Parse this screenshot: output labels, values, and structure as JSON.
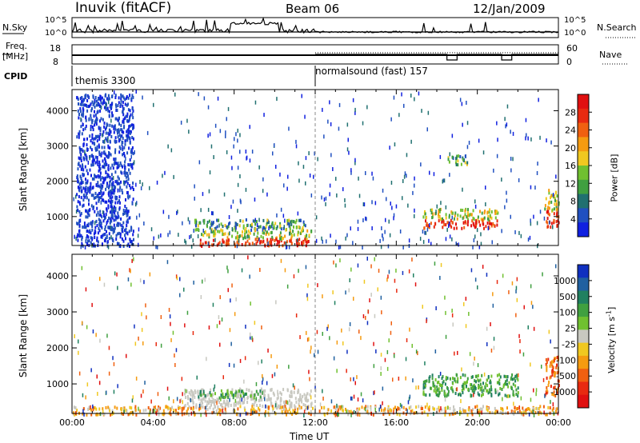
{
  "header": {
    "station": "Inuvik (fitACF)",
    "beam": "Beam 06",
    "date": "12/Jan/2009"
  },
  "nsky": {
    "label": "N.Sky",
    "tick_top": "10^5",
    "tick_bottom": "10^0",
    "right_label": "N.Search",
    "right_tick_top": "10^5",
    "right_tick_bottom": "10^0"
  },
  "freq": {
    "label_line1": "Freq.",
    "label_line2": "[MHz]",
    "tick_top": "18",
    "tick_bottom": "8",
    "right_label": "Nave",
    "right_tick_top": "60",
    "right_tick_bottom": "0"
  },
  "cpid": {
    "label": "CPID",
    "segments": [
      {
        "name": "themis 3300",
        "start_hour": 0
      },
      {
        "name": "normalsound (fast) 157",
        "start_hour": 12
      }
    ]
  },
  "chart_data": [
    {
      "type": "heatmap",
      "panel": "power",
      "ylabel": "Slant Range [km]",
      "yticks": [
        "1000",
        "2000",
        "3000",
        "4000"
      ],
      "ylim_km": [
        180,
        4600
      ],
      "xlim_hours": [
        0,
        24
      ],
      "colorbar": {
        "label": "Power [dB]",
        "ticks": [
          "4",
          "8",
          "12",
          "16",
          "20",
          "24",
          "28"
        ],
        "colors": [
          "#1020e0",
          "#2050c0",
          "#207070",
          "#40a040",
          "#70c030",
          "#f0c820",
          "#f59b10",
          "#f06010",
          "#e82a10",
          "#e01010"
        ]
      },
      "regions": [
        {
          "t0": 6.3,
          "t1": 11.8,
          "r0": 200,
          "r1": 650,
          "level": "high"
        },
        {
          "t0": 6.0,
          "t1": 11.5,
          "r0": 650,
          "r1": 950,
          "level": "medium"
        },
        {
          "t0": 17.3,
          "t1": 21.0,
          "r0": 700,
          "r1": 1250,
          "level": "high"
        },
        {
          "t0": 23.3,
          "t1": 24.0,
          "r0": 700,
          "r1": 1800,
          "level": "high"
        },
        {
          "t0": 0.2,
          "t1": 3.0,
          "r0": 200,
          "r1": 4500,
          "level": "low"
        },
        {
          "t0": 18.5,
          "t1": 19.5,
          "r0": 2500,
          "r1": 2800,
          "level": "medium"
        }
      ]
    },
    {
      "type": "heatmap",
      "panel": "velocity",
      "ylabel": "Slant Range [km]",
      "yticks": [
        "1000",
        "2000",
        "3000",
        "4000"
      ],
      "ylim_km": [
        180,
        4600
      ],
      "xlim_hours": [
        0,
        24
      ],
      "xticks": [
        "00:00",
        "04:00",
        "08:00",
        "12:00",
        "16:00",
        "20:00",
        "00:00"
      ],
      "xlabel": "Time UT",
      "colorbar": {
        "label": "Velocity [m s-1]",
        "ticks": [
          "1000",
          "500",
          "100",
          "25",
          "-25",
          "-100",
          "-500",
          "-1000"
        ],
        "colors": [
          "#1030c0",
          "#2060a0",
          "#208060",
          "#40a040",
          "#70c030",
          "#c8c8c0",
          "#f0c820",
          "#f59b10",
          "#f06010",
          "#e82a10",
          "#e01010"
        ]
      },
      "regions": [
        {
          "t0": 5.5,
          "t1": 11.8,
          "r0": 400,
          "r1": 900,
          "level": "ground"
        },
        {
          "t0": 6.2,
          "t1": 9.5,
          "r0": 650,
          "r1": 850,
          "level": "positive"
        },
        {
          "t0": 17.3,
          "t1": 22.0,
          "r0": 700,
          "r1": 1300,
          "level": "positive"
        },
        {
          "t0": 23.3,
          "t1": 24.0,
          "r0": 700,
          "r1": 1800,
          "level": "negative"
        },
        {
          "t0": 0.0,
          "t1": 24.0,
          "r0": 180,
          "r1": 420,
          "level": "mixed"
        }
      ]
    }
  ]
}
